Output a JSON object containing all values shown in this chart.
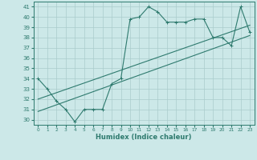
{
  "xlabel": "Humidex (Indice chaleur)",
  "ylabel": "",
  "xlim": [
    -0.5,
    23.5
  ],
  "ylim": [
    29.5,
    41.5
  ],
  "yticks": [
    30,
    31,
    32,
    33,
    34,
    35,
    36,
    37,
    38,
    39,
    40,
    41
  ],
  "xticks": [
    0,
    1,
    2,
    3,
    4,
    5,
    6,
    7,
    8,
    9,
    10,
    11,
    12,
    13,
    14,
    15,
    16,
    17,
    18,
    19,
    20,
    21,
    22,
    23
  ],
  "bg_color": "#cce8e8",
  "grid_color": "#aacccc",
  "line_color": "#2e7a6e",
  "series1_x": [
    0,
    1,
    2,
    3,
    4,
    5,
    6,
    7,
    8,
    9,
    10,
    11,
    12,
    13,
    14,
    15,
    16,
    17,
    18,
    19,
    20,
    21,
    22,
    23
  ],
  "series1_y": [
    34.0,
    33.0,
    31.8,
    31.0,
    29.8,
    31.0,
    31.0,
    31.0,
    33.5,
    34.0,
    39.8,
    40.0,
    41.0,
    40.5,
    39.5,
    39.5,
    39.5,
    39.8,
    39.8,
    38.0,
    38.0,
    37.2,
    41.0,
    38.5
  ],
  "series2_x": [
    0,
    23
  ],
  "series2_y": [
    30.8,
    38.2
  ],
  "series3_x": [
    0,
    23
  ],
  "series3_y": [
    32.0,
    39.2
  ],
  "figsize": [
    3.2,
    2.0
  ],
  "dpi": 100
}
